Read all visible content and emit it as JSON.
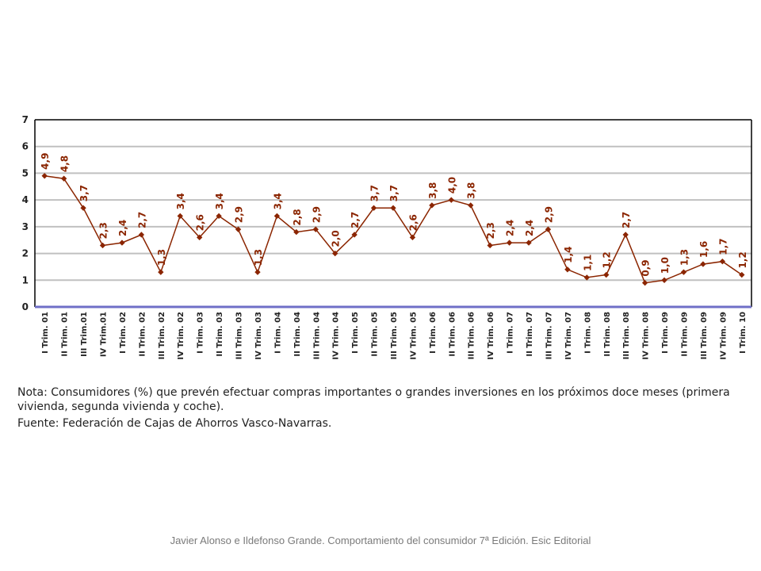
{
  "chart_data": {
    "type": "line",
    "categories": [
      "I Trim. 01",
      "II Trim. 01",
      "III Trim.01",
      "IV Trim.01",
      "I Trim. 02",
      "II Trim. 02",
      "III Trim. 02",
      "IV Trim. 02",
      "I Trim. 03",
      "II Trim. 03",
      "III Trim. 03",
      "IV Trim. 03",
      "I Trim. 04",
      "II Trim. 04",
      "III Trim. 04",
      "IV Trim. 04",
      "I Trim. 05",
      "II Trim. 05",
      "III Trim. 05",
      "IV Trim. 05",
      "I Trim. 06",
      "II Trim. 06",
      "III Trim. 06",
      "IV Trim. 06",
      "I Trim. 07",
      "II Trim. 07",
      "III Trim. 07",
      "IV Trim. 07",
      "I Trim. 08",
      "II Trim. 08",
      "III Trim. 08",
      "IV Trim. 08",
      "I Trim. 09",
      "II Trim. 09",
      "III Trim. 09",
      "IV Trim. 09",
      "I Trim. 10"
    ],
    "values": [
      4.9,
      4.8,
      3.7,
      2.3,
      2.4,
      2.7,
      1.3,
      3.4,
      2.6,
      3.4,
      2.9,
      1.3,
      3.4,
      2.8,
      2.9,
      2.0,
      2.7,
      3.7,
      3.7,
      2.6,
      3.8,
      4.0,
      3.8,
      2.3,
      2.4,
      2.4,
      2.9,
      1.4,
      1.1,
      1.2,
      2.7,
      0.9,
      1.0,
      1.3,
      1.6,
      1.7,
      1.2
    ],
    "labels": [
      "4,9",
      "4,8",
      "3,7",
      "2,3",
      "2,4",
      "2,7",
      "1,3",
      "3,4",
      "2,6",
      "3,4",
      "2,9",
      "1,3",
      "3,4",
      "2,8",
      "2,9",
      "2,0",
      "2,7",
      "3,7",
      "3,7",
      "2,6",
      "3,8",
      "4,0",
      "3,8",
      "2,3",
      "2,4",
      "2,4",
      "2,9",
      "1,4",
      "1,1",
      "1,2",
      "2,7",
      "0,9",
      "1,0",
      "1,3",
      "1,6",
      "1,7",
      "1,2"
    ],
    "yticks": [
      "0",
      "1",
      "2",
      "3",
      "4",
      "5",
      "6",
      "7"
    ],
    "ylim": [
      0,
      7
    ],
    "grid": true,
    "title": "",
    "xlabel": "",
    "ylabel": "",
    "colors": {
      "line": "#8b2500",
      "grid": "#c0c0c0",
      "baseline": "#6f6fc7",
      "label": "#8b2500"
    }
  },
  "note": {
    "line1": "Nota: Consumidores (%) que prevén efectuar compras importantes o grandes inversiones en los próximos doce meses (primera vivienda, segunda vivienda y coche).",
    "source": "Fuente: Federación de Cajas de Ahorros Vasco-Navarras."
  },
  "footer": "Javier Alonso e Ildefonso Grande. Comportamiento del consumidor 7ª Edición. Esic Editorial"
}
